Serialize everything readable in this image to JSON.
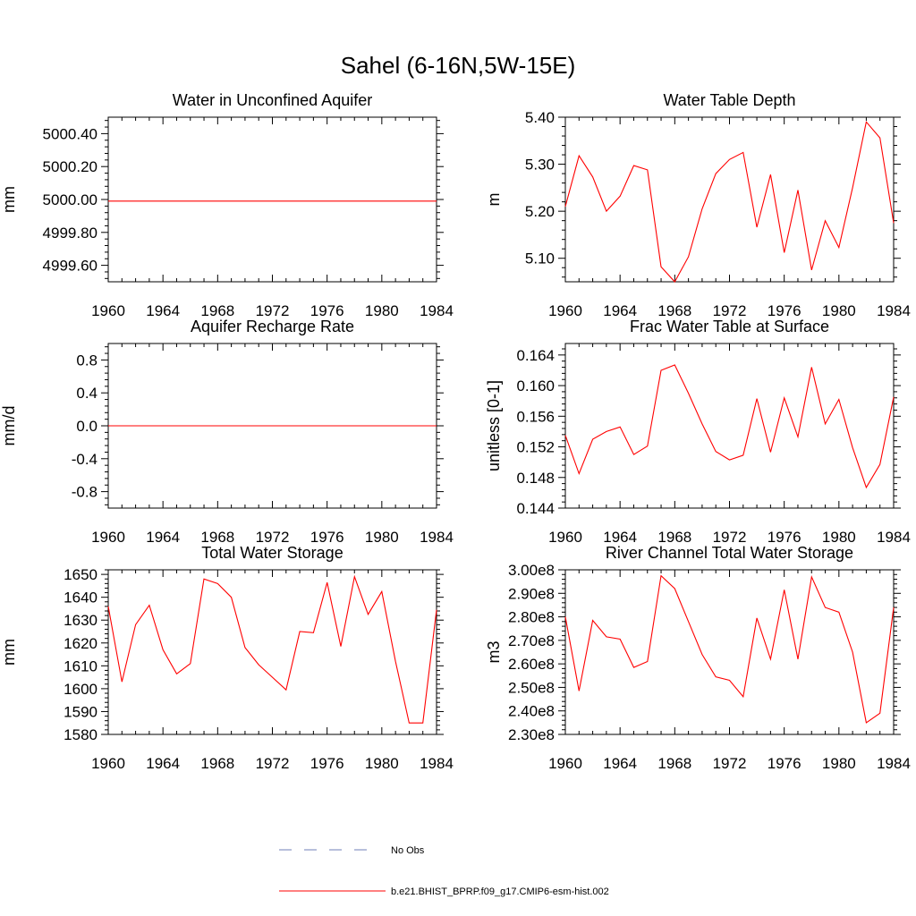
{
  "figure": {
    "title": "Sahel (6-16N,5W-15E)"
  },
  "legend": {
    "items": [
      {
        "label": "No Obs",
        "color": "#6f7fb8",
        "dash": true
      },
      {
        "label": "b.e21.BHIST_BPRP.f09_g17.CMIP6-esm-hist.002",
        "color": "#ff0000",
        "dash": false
      }
    ]
  },
  "chart_data": [
    {
      "type": "line",
      "title": "Water in Unconfined Aquifer",
      "ylabel": "mm",
      "xlim": [
        1960,
        1984
      ],
      "ylim": [
        4999.5,
        5000.5
      ],
      "xticks": [
        1960,
        1964,
        1968,
        1972,
        1976,
        1980,
        1984
      ],
      "yticks": [
        4999.6,
        4999.8,
        5000.0,
        5000.2,
        5000.4
      ],
      "ytick_labels": [
        "4999.60",
        "4999.80",
        "5000.00",
        "5000.20",
        "5000.40"
      ],
      "series": [
        {
          "color": "#ff0000",
          "x": [
            1960,
            1961,
            1962,
            1963,
            1964,
            1965,
            1966,
            1967,
            1968,
            1969,
            1970,
            1971,
            1972,
            1973,
            1974,
            1975,
            1976,
            1977,
            1978,
            1979,
            1980,
            1981,
            1982,
            1983,
            1984
          ],
          "values": [
            4999.99,
            4999.99,
            4999.99,
            4999.99,
            4999.99,
            4999.99,
            4999.99,
            4999.99,
            4999.99,
            4999.99,
            4999.99,
            4999.99,
            4999.99,
            4999.99,
            4999.99,
            4999.99,
            4999.99,
            4999.99,
            4999.99,
            4999.99,
            4999.99,
            4999.99,
            4999.99,
            4999.99,
            4999.99
          ]
        }
      ]
    },
    {
      "type": "line",
      "title": "Water Table Depth",
      "ylabel": "m",
      "xlim": [
        1960,
        1984
      ],
      "ylim": [
        5.05,
        5.4
      ],
      "xticks": [
        1960,
        1964,
        1968,
        1972,
        1976,
        1980,
        1984
      ],
      "yticks": [
        5.1,
        5.2,
        5.3,
        5.4
      ],
      "ytick_labels": [
        "5.10",
        "5.20",
        "5.30",
        "5.40"
      ],
      "series": [
        {
          "color": "#ff0000",
          "x": [
            1960,
            1961,
            1962,
            1963,
            1964,
            1965,
            1966,
            1967,
            1968,
            1969,
            1970,
            1971,
            1972,
            1973,
            1974,
            1975,
            1976,
            1977,
            1978,
            1979,
            1980,
            1981,
            1982,
            1983,
            1984
          ],
          "values": [
            5.21,
            5.318,
            5.273,
            5.2,
            5.232,
            5.297,
            5.288,
            5.082,
            5.05,
            5.103,
            5.205,
            5.28,
            5.31,
            5.325,
            5.166,
            5.278,
            5.112,
            5.245,
            5.075,
            5.18,
            5.123,
            5.25,
            5.39,
            5.356,
            5.175
          ]
        }
      ]
    },
    {
      "type": "line",
      "title": "Aquifer Recharge Rate",
      "ylabel": "mm/d",
      "xlim": [
        1960,
        1984
      ],
      "ylim": [
        -1.0,
        1.0
      ],
      "xticks": [
        1960,
        1964,
        1968,
        1972,
        1976,
        1980,
        1984
      ],
      "yticks": [
        -0.8,
        -0.4,
        0.0,
        0.4,
        0.8
      ],
      "ytick_labels": [
        "-0.8",
        "-0.4",
        "0.0",
        "0.4",
        "0.8"
      ],
      "series": [
        {
          "color": "#ff0000",
          "x": [
            1960,
            1961,
            1962,
            1963,
            1964,
            1965,
            1966,
            1967,
            1968,
            1969,
            1970,
            1971,
            1972,
            1973,
            1974,
            1975,
            1976,
            1977,
            1978,
            1979,
            1980,
            1981,
            1982,
            1983,
            1984
          ],
          "values": [
            0,
            0,
            0,
            0,
            0,
            0,
            0,
            0,
            0,
            0,
            0,
            0,
            0,
            0,
            0,
            0,
            0,
            0,
            0,
            0,
            0,
            0,
            0,
            0,
            0
          ]
        }
      ]
    },
    {
      "type": "line",
      "title": "Frac Water Table at Surface",
      "ylabel": "unitless [0-1]",
      "xlim": [
        1960,
        1984
      ],
      "ylim": [
        0.144,
        0.1655
      ],
      "xticks": [
        1960,
        1964,
        1968,
        1972,
        1976,
        1980,
        1984
      ],
      "yticks": [
        0.144,
        0.148,
        0.152,
        0.156,
        0.16,
        0.164
      ],
      "ytick_labels": [
        "0.144",
        "0.148",
        "0.152",
        "0.156",
        "0.160",
        "0.164"
      ],
      "series": [
        {
          "color": "#ff0000",
          "x": [
            1960,
            1961,
            1962,
            1963,
            1964,
            1965,
            1966,
            1967,
            1968,
            1969,
            1970,
            1971,
            1972,
            1973,
            1974,
            1975,
            1976,
            1977,
            1978,
            1979,
            1980,
            1981,
            1982,
            1983,
            1984
          ],
          "values": [
            0.1535,
            0.1485,
            0.153,
            0.154,
            0.1546,
            0.151,
            0.1521,
            0.162,
            0.1627,
            0.159,
            0.155,
            0.1514,
            0.1503,
            0.1509,
            0.1583,
            0.1513,
            0.1584,
            0.1533,
            0.1624,
            0.155,
            0.1582,
            0.1519,
            0.1467,
            0.1497,
            0.1585
          ]
        }
      ]
    },
    {
      "type": "line",
      "title": "Total Water Storage",
      "ylabel": "mm",
      "xlim": [
        1960,
        1984
      ],
      "ylim": [
        1580,
        1652
      ],
      "xticks": [
        1960,
        1964,
        1968,
        1972,
        1976,
        1980,
        1984
      ],
      "yticks": [
        1580,
        1590,
        1600,
        1610,
        1620,
        1630,
        1640,
        1650
      ],
      "ytick_labels": [
        "1580",
        "1590",
        "1600",
        "1610",
        "1620",
        "1630",
        "1640",
        "1650"
      ],
      "series": [
        {
          "color": "#ff0000",
          "x": [
            1960,
            1961,
            1962,
            1963,
            1964,
            1965,
            1966,
            1967,
            1968,
            1969,
            1970,
            1971,
            1972,
            1973,
            1974,
            1975,
            1976,
            1977,
            1978,
            1979,
            1980,
            1981,
            1982,
            1983,
            1984
          ],
          "values": [
            1636,
            1603,
            1628,
            1636.5,
            1617,
            1606.5,
            1611,
            1648,
            1646,
            1640,
            1618,
            1610.5,
            1605,
            1599.5,
            1625,
            1624.5,
            1646.5,
            1618.5,
            1649,
            1632.5,
            1642.5,
            1612,
            1585,
            1585,
            1634.5
          ]
        }
      ]
    },
    {
      "type": "line",
      "title": "River Channel Total Water Storage",
      "ylabel": "m3",
      "xlim": [
        1960,
        1984
      ],
      "ylim": [
        230000000,
        300000000
      ],
      "xticks": [
        1960,
        1964,
        1968,
        1972,
        1976,
        1980,
        1984
      ],
      "yticks": [
        230000000,
        240000000,
        250000000,
        260000000,
        270000000,
        280000000,
        290000000,
        300000000
      ],
      "ytick_labels": [
        "2.30e8",
        "2.40e8",
        "2.50e8",
        "2.60e8",
        "2.70e8",
        "2.80e8",
        "2.90e8",
        "3.00e8"
      ],
      "series": [
        {
          "color": "#ff0000",
          "x": [
            1960,
            1961,
            1962,
            1963,
            1964,
            1965,
            1966,
            1967,
            1968,
            1969,
            1970,
            1971,
            1972,
            1973,
            1974,
            1975,
            1976,
            1977,
            1978,
            1979,
            1980,
            1981,
            1982,
            1983,
            1984
          ],
          "values": [
            280000000,
            248500000,
            278500000,
            271500000,
            270500000,
            258500000,
            261000000,
            297500000,
            292000000,
            278000000,
            264000000,
            254500000,
            253000000,
            246000000,
            279500000,
            262000000,
            291500000,
            262000000,
            297000000,
            284000000,
            282000000,
            265000000,
            235000000,
            239000000,
            284000000
          ]
        }
      ]
    }
  ]
}
